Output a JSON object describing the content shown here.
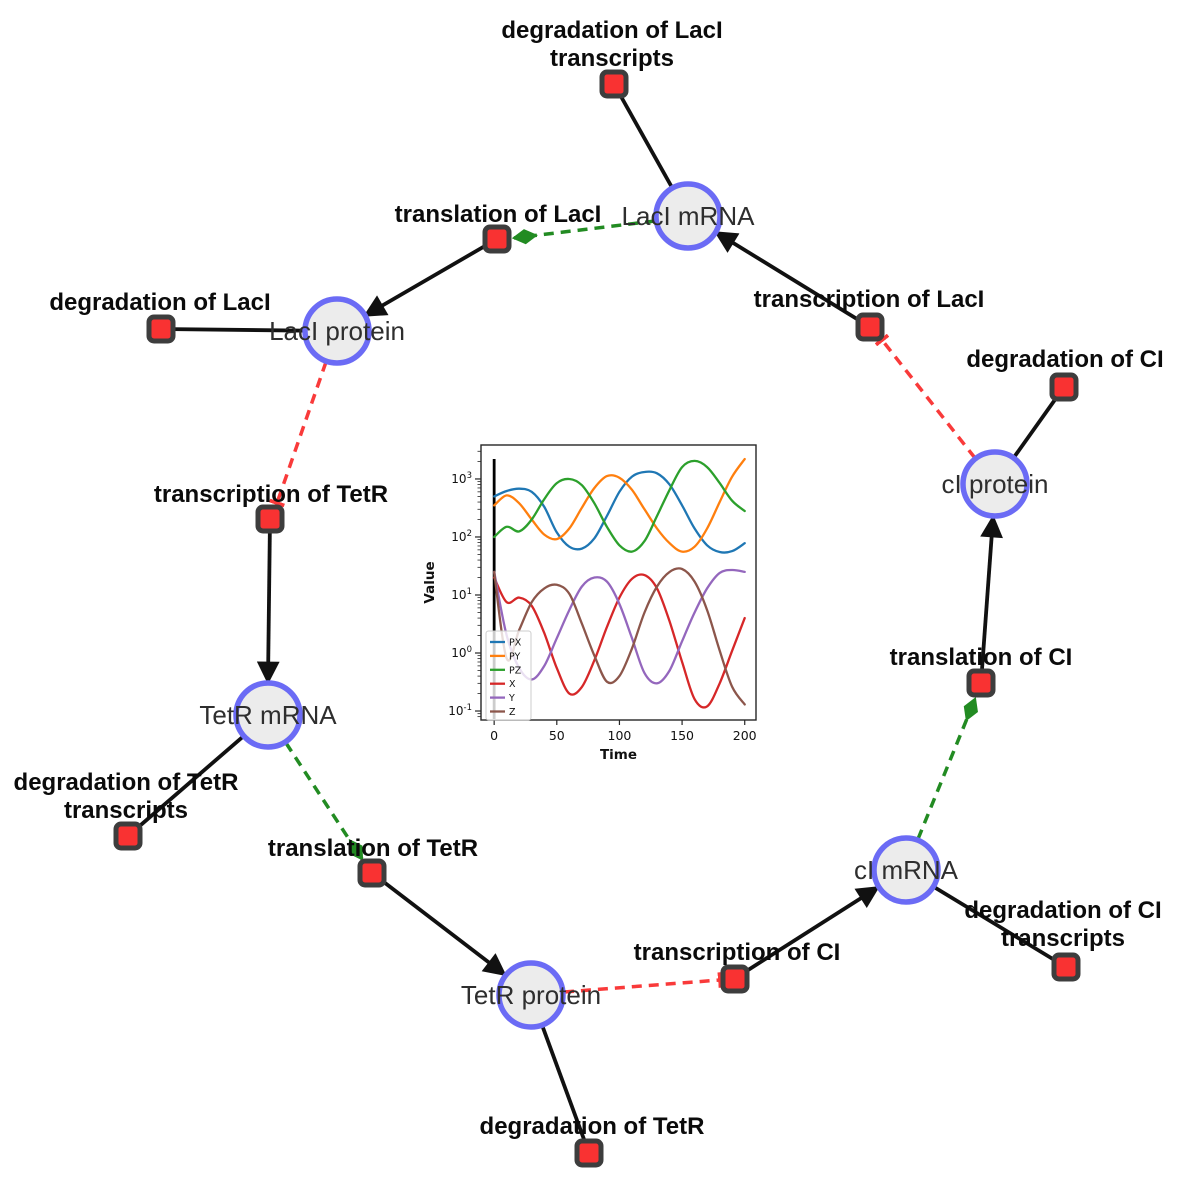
{
  "diagram": {
    "species": [
      {
        "id": "laci_mrna",
        "label": "LacI mRNA"
      },
      {
        "id": "laci_protein",
        "label": "LacI protein"
      },
      {
        "id": "tetr_mrna",
        "label": "TetR mRNA"
      },
      {
        "id": "tetr_protein",
        "label": "TetR protein"
      },
      {
        "id": "ci_mrna",
        "label": "cI mRNA"
      },
      {
        "id": "ci_protein",
        "label": "cI protein"
      }
    ],
    "reactions": [
      {
        "id": "deg_laci_transcripts",
        "label": "degradation of LacI transcripts",
        "lines": [
          "degradation of LacI",
          "transcripts"
        ]
      },
      {
        "id": "translation_laci",
        "label": "translation of LacI"
      },
      {
        "id": "deg_laci",
        "label": "degradation of LacI"
      },
      {
        "id": "transcription_tetr",
        "label": "transcription of TetR"
      },
      {
        "id": "transcription_laci",
        "label": "transcription of LacI"
      },
      {
        "id": "deg_ci",
        "label": "degradation of CI"
      },
      {
        "id": "deg_tetr_transcripts",
        "label": "degradation of TetR transcripts",
        "lines": [
          "degradation of TetR",
          "transcripts"
        ]
      },
      {
        "id": "translation_tetr",
        "label": "translation of TetR"
      },
      {
        "id": "transcription_ci",
        "label": "transcription of CI"
      },
      {
        "id": "deg_tetr",
        "label": "degradation of TetR"
      },
      {
        "id": "translation_ci",
        "label": "translation of CI"
      },
      {
        "id": "deg_ci_transcripts",
        "label": "degradation of CI transcripts",
        "lines": [
          "degradation of CI",
          "transcripts"
        ]
      }
    ],
    "edges": [
      {
        "source": "LacI mRNA",
        "target": "degradation of LacI transcripts",
        "type": "consumption"
      },
      {
        "source": "translation of LacI",
        "target": "LacI protein",
        "type": "production"
      },
      {
        "source": "transcription of LacI",
        "target": "LacI mRNA",
        "type": "production"
      },
      {
        "source": "LacI protein",
        "target": "degradation of LacI",
        "type": "consumption"
      },
      {
        "source": "LacI mRNA",
        "target": "translation of LacI",
        "type": "modifier"
      },
      {
        "source": "LacI protein",
        "target": "transcription of TetR",
        "type": "inhibition"
      },
      {
        "source": "transcription of TetR",
        "target": "TetR mRNA",
        "type": "production"
      },
      {
        "source": "TetR mRNA",
        "target": "degradation of TetR transcripts",
        "type": "consumption"
      },
      {
        "source": "TetR mRNA",
        "target": "translation of TetR",
        "type": "modifier"
      },
      {
        "source": "translation of TetR",
        "target": "TetR protein",
        "type": "production"
      },
      {
        "source": "TetR protein",
        "target": "degradation of TetR",
        "type": "consumption"
      },
      {
        "source": "TetR protein",
        "target": "transcription of CI",
        "type": "inhibition"
      },
      {
        "source": "transcription of CI",
        "target": "cI mRNA",
        "type": "production"
      },
      {
        "source": "cI mRNA",
        "target": "degradation of CI transcripts",
        "type": "consumption"
      },
      {
        "source": "cI mRNA",
        "target": "translation of CI",
        "type": "modifier"
      },
      {
        "source": "translation of CI",
        "target": "cI protein",
        "type": "production"
      },
      {
        "source": "cI protein",
        "target": "degradation of CI",
        "type": "consumption"
      },
      {
        "source": "cI protein",
        "target": "transcription of LacI",
        "type": "inhibition"
      }
    ],
    "colors": {
      "species_fill": "#ececec",
      "species_border": "#6b6bf5",
      "reaction_fill": "#f93232",
      "reaction_border": "#3d3d3d",
      "production_edge": "#111111",
      "modifier_edge": "#228b22",
      "inhibition_edge": "#f93a3a",
      "background": "#ffffff"
    }
  },
  "chart_data": {
    "type": "line",
    "title": "",
    "xlabel": "Time",
    "ylabel": "Value",
    "y_scale": "log",
    "xlim": [
      -10.5,
      209
    ],
    "ylim": [
      0.07,
      3850
    ],
    "x_ticks": [
      0,
      50,
      100,
      150,
      200
    ],
    "y_tick_exponents": [
      -1,
      0,
      1,
      2,
      3
    ],
    "legend_position": "lower left",
    "initial_marker_x": 0,
    "x": [
      0,
      10,
      20,
      30,
      40,
      50,
      60,
      70,
      80,
      90,
      100,
      110,
      120,
      130,
      140,
      150,
      160,
      170,
      180,
      190,
      200
    ],
    "series": [
      {
        "name": "PX",
        "color": "#1f77b4",
        "values": [
          500,
          620,
          680,
          600,
          330,
          120,
          68,
          63,
          95,
          230,
          600,
          1100,
          1320,
          1250,
          800,
          350,
          140,
          72,
          55,
          57,
          78
        ]
      },
      {
        "name": "PY",
        "color": "#ff7f0e",
        "values": [
          350,
          520,
          380,
          200,
          110,
          92,
          140,
          320,
          700,
          1120,
          1050,
          650,
          300,
          140,
          78,
          56,
          68,
          140,
          400,
          1100,
          2200
        ]
      },
      {
        "name": "PZ",
        "color": "#2ca02c",
        "values": [
          100,
          150,
          125,
          200,
          450,
          850,
          1000,
          780,
          380,
          150,
          72,
          56,
          85,
          230,
          650,
          1600,
          2050,
          1600,
          850,
          420,
          280
        ]
      },
      {
        "name": "X",
        "color": "#d62728",
        "values": [
          20,
          7.5,
          9,
          6.5,
          2.2,
          0.55,
          0.2,
          0.26,
          0.75,
          2.8,
          9,
          19,
          22,
          13,
          3.5,
          0.7,
          0.16,
          0.12,
          0.3,
          1.1,
          4
        ]
      },
      {
        "name": "Y",
        "color": "#9467bd",
        "values": [
          25,
          2,
          0.55,
          0.35,
          0.6,
          1.8,
          5.5,
          14,
          20,
          17,
          7,
          1.8,
          0.45,
          0.3,
          0.5,
          1.6,
          5,
          13,
          24,
          27,
          25
        ]
      },
      {
        "name": "Z",
        "color": "#8c564b",
        "values": [
          25,
          0.8,
          2.5,
          7.5,
          13,
          15,
          10.5,
          3.2,
          0.9,
          0.32,
          0.4,
          1.2,
          5,
          14,
          25,
          28,
          17,
          5.5,
          1.1,
          0.26,
          0.13
        ]
      }
    ]
  }
}
